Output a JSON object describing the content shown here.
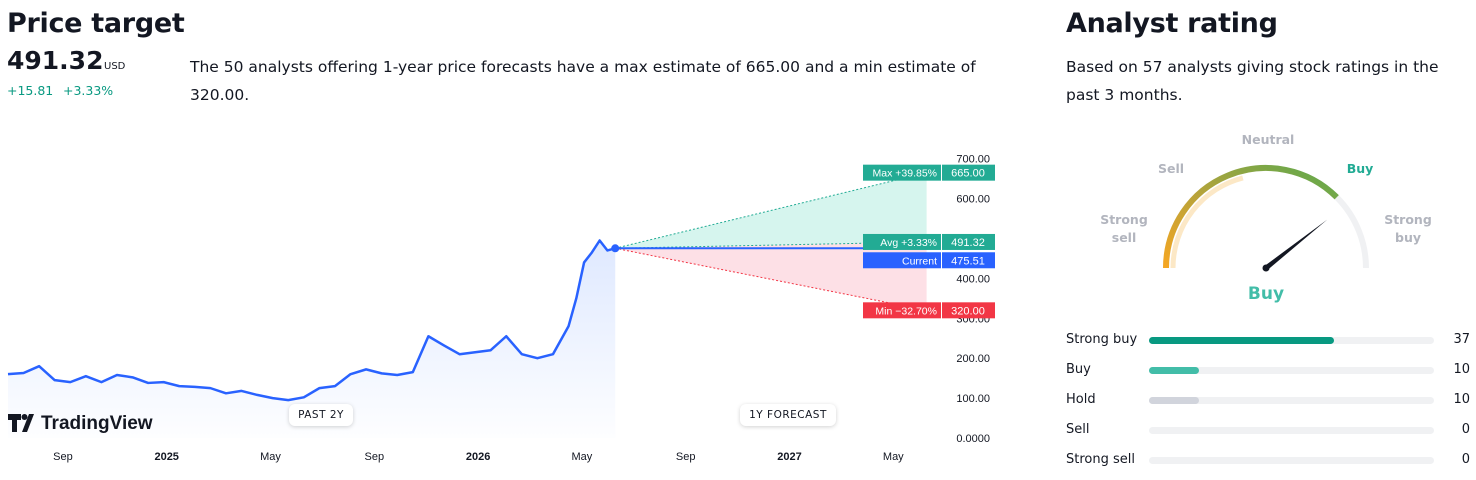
{
  "price_target": {
    "title": "Price target",
    "price": "491.32",
    "currency": "USD",
    "change": "+15.81",
    "change_pct": "+3.33%",
    "description": "The 50 analysts offering 1-year price forecasts have a max estimate of 665.00 and a min estimate of 320.00."
  },
  "chart_pills": {
    "past": "PAST 2Y",
    "forecast": "1Y FORECAST"
  },
  "branding": {
    "logo_text": "TradingView"
  },
  "colors": {
    "line": "#2962ff",
    "up": "#22ab94",
    "down": "#f23645",
    "max_fill": "#d6f5ee",
    "min_fill": "#fde0e6",
    "past_fill_top": "#dbe6ff"
  },
  "chart_data": {
    "type": "line",
    "x_tick_labels": [
      "Sep",
      "2025",
      "May",
      "Sep",
      "2026",
      "May",
      "Sep",
      "2027",
      "May"
    ],
    "y_tick_labels": [
      "700.00",
      "600.00",
      "500.00",
      "400.00",
      "300.00",
      "200.00",
      "100.00",
      "0.0000"
    ],
    "ylim": [
      0,
      700
    ],
    "history": {
      "name": "Price",
      "x": [
        0,
        0.6,
        1.2,
        1.8,
        2.4,
        3.0,
        3.6,
        4.2,
        4.8,
        5.4,
        6.0,
        6.6,
        7.2,
        7.8,
        8.4,
        9.0,
        9.6,
        10.2,
        10.8,
        11.4,
        12.0,
        12.6,
        13.2,
        13.8,
        14.4,
        15.0,
        15.6,
        16.2,
        16.8,
        17.4,
        18.0,
        18.6,
        19.2,
        19.8,
        20.4,
        21.0,
        21.6,
        21.9,
        22.2,
        22.5,
        22.8,
        23.1,
        23.4
      ],
      "y": [
        160,
        163,
        180,
        145,
        140,
        155,
        140,
        158,
        152,
        138,
        140,
        130,
        128,
        125,
        112,
        118,
        108,
        100,
        95,
        102,
        125,
        130,
        160,
        172,
        162,
        158,
        165,
        255,
        232,
        210,
        215,
        220,
        255,
        210,
        200,
        210,
        280,
        350,
        440,
        465,
        495,
        470,
        475.51
      ]
    },
    "forecast": {
      "x_end": 35.4,
      "current": {
        "label": "Current",
        "value": 475.51
      },
      "max": {
        "label": "Max +39.85%",
        "value": 665.0
      },
      "avg": {
        "label": "Avg +3.33%",
        "value": 491.32
      },
      "min": {
        "label": "Min −32.70%",
        "value": 320.0
      }
    }
  },
  "analyst_rating": {
    "title": "Analyst rating",
    "description": "Based on 57 analysts giving stock ratings in the past 3 months.",
    "gauge_labels": {
      "neutral": "Neutral",
      "sell": "Sell",
      "buy": "Buy",
      "strong_sell": "Strong sell",
      "strong_buy": "Strong buy"
    },
    "verdict": "Buy",
    "gauge_needle_fraction": 0.8,
    "rows": [
      {
        "label": "Strong buy",
        "count": "37",
        "fraction": 0.649,
        "color": "#089981"
      },
      {
        "label": "Buy",
        "count": "10",
        "fraction": 0.175,
        "color": "#42bda8"
      },
      {
        "label": "Hold",
        "count": "10",
        "fraction": 0.175,
        "color": "#d1d4dc"
      },
      {
        "label": "Sell",
        "count": "0",
        "fraction": 0,
        "color": "#f7525f"
      },
      {
        "label": "Strong sell",
        "count": "0",
        "fraction": 0,
        "color": "#f23645"
      }
    ]
  }
}
